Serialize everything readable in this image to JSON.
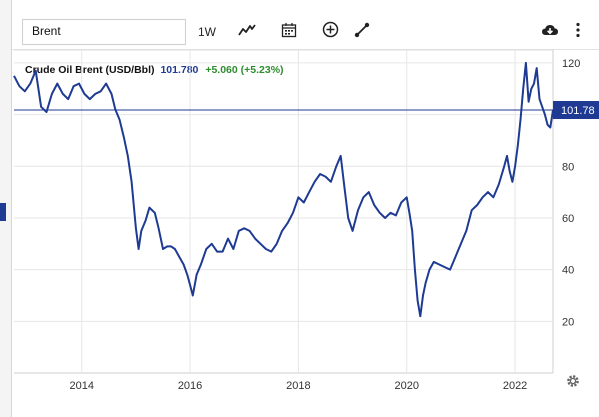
{
  "toolbar": {
    "symbol_value": "Brent",
    "interval_label": "1W",
    "icons": [
      "line-chart-icon",
      "calendar-icon",
      "add-circle-icon",
      "draw-tool-icon",
      "cloud-download-icon",
      "more-vertical-icon"
    ]
  },
  "legend": {
    "name": "Crude Oil Brent (USD/Bbl)",
    "last": "101.780",
    "change": "+5.060 (+5.23%)"
  },
  "colors": {
    "line": "#1f3a93",
    "price_tag": "#1f3a93",
    "change": "#2e8b2e",
    "grid": "#e6e6e6"
  },
  "chart_data": {
    "type": "line",
    "title": "",
    "xlabel": "",
    "ylabel": "",
    "x_ticks": [
      "2014",
      "2016",
      "2018",
      "2020",
      "2022"
    ],
    "y_ticks": [
      "20",
      "40",
      "60",
      "80",
      "100",
      "120"
    ],
    "ylim": [
      0,
      125
    ],
    "xlim": [
      2012.75,
      2022.7
    ],
    "grid": true,
    "last_price_label": "101.78",
    "last_price": 101.78,
    "series": [
      {
        "name": "Crude Oil Brent (USD/Bbl)",
        "x": [
          2012.75,
          2012.85,
          2012.95,
          2013.05,
          2013.15,
          2013.25,
          2013.35,
          2013.45,
          2013.55,
          2013.65,
          2013.75,
          2013.85,
          2013.95,
          2014.05,
          2014.15,
          2014.25,
          2014.35,
          2014.45,
          2014.55,
          2014.62,
          2014.7,
          2014.78,
          2014.85,
          2014.92,
          2015.0,
          2015.05,
          2015.1,
          2015.18,
          2015.25,
          2015.35,
          2015.42,
          2015.5,
          2015.58,
          2015.65,
          2015.72,
          2015.8,
          2015.88,
          2015.95,
          2016.0,
          2016.05,
          2016.12,
          2016.2,
          2016.3,
          2016.4,
          2016.5,
          2016.6,
          2016.7,
          2016.8,
          2016.9,
          2017.0,
          2017.1,
          2017.2,
          2017.3,
          2017.4,
          2017.5,
          2017.6,
          2017.7,
          2017.8,
          2017.9,
          2018.0,
          2018.1,
          2018.2,
          2018.3,
          2018.4,
          2018.5,
          2018.6,
          2018.7,
          2018.78,
          2018.85,
          2018.92,
          2019.0,
          2019.1,
          2019.2,
          2019.3,
          2019.4,
          2019.5,
          2019.6,
          2019.7,
          2019.8,
          2019.9,
          2020.0,
          2020.05,
          2020.1,
          2020.15,
          2020.2,
          2020.25,
          2020.3,
          2020.35,
          2020.42,
          2020.5,
          2020.6,
          2020.7,
          2020.8,
          2020.9,
          2021.0,
          2021.1,
          2021.2,
          2021.3,
          2021.4,
          2021.5,
          2021.6,
          2021.7,
          2021.8,
          2021.85,
          2021.9,
          2021.95,
          2022.0,
          2022.05,
          2022.1,
          2022.15,
          2022.2,
          2022.25,
          2022.3,
          2022.35,
          2022.4,
          2022.45,
          2022.5,
          2022.55,
          2022.6,
          2022.65,
          2022.7
        ],
        "values": [
          115,
          111,
          109,
          112,
          117,
          103,
          101,
          108,
          112,
          108,
          106,
          111,
          112,
          108,
          106,
          108,
          109,
          112,
          108,
          102,
          98,
          91,
          84,
          74,
          56,
          48,
          55,
          59,
          64,
          62,
          56,
          48,
          49,
          49,
          48,
          45,
          42,
          38,
          34,
          30,
          38,
          42,
          48,
          50,
          47,
          47,
          52,
          48,
          55,
          56,
          55,
          52,
          50,
          48,
          47,
          50,
          55,
          58,
          62,
          68,
          66,
          70,
          74,
          77,
          76,
          74,
          80,
          84,
          72,
          60,
          55,
          63,
          68,
          70,
          65,
          62,
          60,
          62,
          61,
          66,
          68,
          62,
          55,
          40,
          28,
          22,
          30,
          35,
          40,
          43,
          42,
          41,
          40,
          45,
          50,
          55,
          63,
          65,
          68,
          70,
          68,
          73,
          80,
          84,
          78,
          74,
          80,
          88,
          98,
          110,
          120,
          105,
          110,
          112,
          118,
          106,
          103,
          100,
          96,
          95,
          101.78
        ]
      }
    ]
  }
}
